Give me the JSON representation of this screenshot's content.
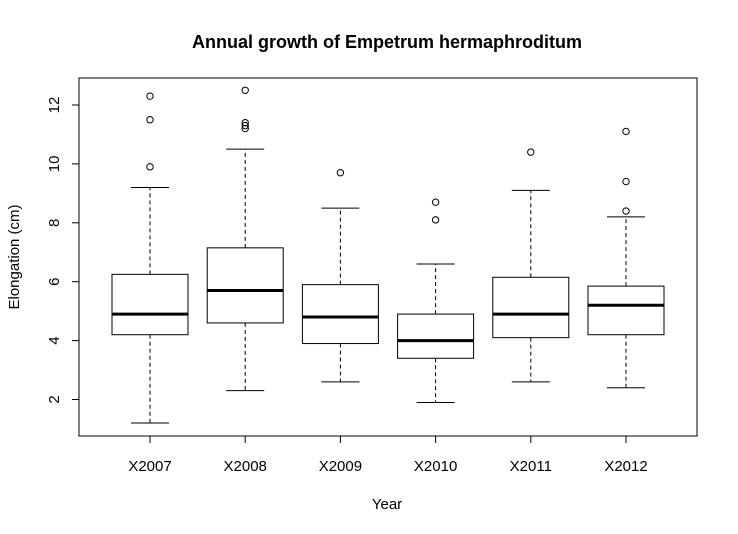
{
  "chart_data": {
    "type": "boxplot",
    "title": "Annual growth of Empetrum hermaphroditum",
    "xlabel": "Year",
    "ylabel": "Elongation (cm)",
    "ylim": [
      0.8,
      13.0
    ],
    "yticks": [
      2,
      4,
      6,
      8,
      10,
      12
    ],
    "grid": false,
    "categories": [
      "X2007",
      "X2008",
      "X2009",
      "X2010",
      "X2011",
      "X2012"
    ],
    "boxes": [
      {
        "category": "X2007",
        "whisker_low": 1.2,
        "q1": 4.2,
        "median": 4.9,
        "q3": 6.25,
        "whisker_high": 9.2,
        "outliers": [
          9.9,
          11.5,
          12.3
        ]
      },
      {
        "category": "X2008",
        "whisker_low": 2.3,
        "q1": 4.6,
        "median": 5.7,
        "q3": 7.15,
        "whisker_high": 10.5,
        "outliers": [
          11.2,
          11.3,
          11.4,
          12.5
        ]
      },
      {
        "category": "X2009",
        "whisker_low": 2.6,
        "q1": 3.9,
        "median": 4.8,
        "q3": 5.9,
        "whisker_high": 8.5,
        "outliers": [
          9.7
        ]
      },
      {
        "category": "X2010",
        "whisker_low": 1.9,
        "q1": 3.4,
        "median": 4.0,
        "q3": 4.9,
        "whisker_high": 6.6,
        "outliers": [
          8.1,
          8.7
        ]
      },
      {
        "category": "X2011",
        "whisker_low": 2.6,
        "q1": 4.1,
        "median": 4.9,
        "q3": 6.15,
        "whisker_high": 9.1,
        "outliers": [
          10.4
        ]
      },
      {
        "category": "X2012",
        "whisker_low": 2.4,
        "q1": 4.2,
        "median": 5.2,
        "q3": 5.85,
        "whisker_high": 8.2,
        "outliers": [
          8.4,
          9.4,
          11.1
        ]
      }
    ]
  }
}
